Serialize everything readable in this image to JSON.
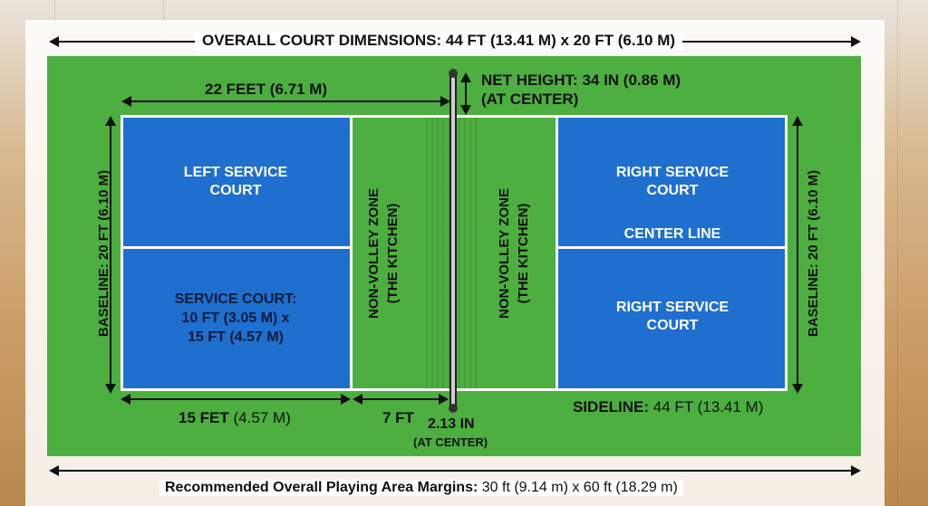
{
  "overall_dimensions": "OVERALL COURT DIMENSIONS: 44 FT (13.41 M) x 20 FT (6.10 M)",
  "half_length": "22 FEET (6.71 M)",
  "net_height": {
    "line1": "NET HEIGHT: 34 IN (0.86 M)",
    "line2": "(AT CENTER)"
  },
  "baseline_left": "BASELINE: 20 FT (6.10 M)",
  "baseline_right": "BASELINE: 20 FT (6.10 M)",
  "left_service_court": {
    "line1": "LEFT SERVICE",
    "line2": "COURT"
  },
  "service_court_dims": {
    "line1": "SERVICE COURT:",
    "line2": "10 FT (3.05 M) x",
    "line3": "15 FT (4.57 M)"
  },
  "kitchen_left": {
    "line1": "NON-VOLLEY ZONE",
    "line2": "(THE KITCHEN)"
  },
  "kitchen_right": {
    "line1": "NON-VOLLEY ZONE",
    "line2": "(THE KITCHEN)"
  },
  "right_service_top": {
    "line1": "RIGHT SERVICE",
    "line2": "COURT"
  },
  "center_line": "CENTER LINE",
  "right_service_bottom": {
    "line1": "RIGHT SERVICE",
    "line2": "COURT"
  },
  "bottom_left_measure": {
    "bold": "15 FET",
    "normal": "(4.57 M)"
  },
  "kitchen_measure": "7 FT",
  "post_measure": {
    "line1": "2.13 IN",
    "line2": "(AT CENTER)"
  },
  "sideline": {
    "bold": "SIDELINE:",
    "normal": "44 FT (13.41 M)"
  },
  "margins": {
    "bold": "Recommended Overall Playing Area Margins:",
    "normal": "30 ft (9.14 m) x 60 ft (18.29 m)"
  },
  "colors": {
    "turf": "#4caf3f",
    "service_court": "#1f6fcf",
    "lines": "#ffffff"
  }
}
